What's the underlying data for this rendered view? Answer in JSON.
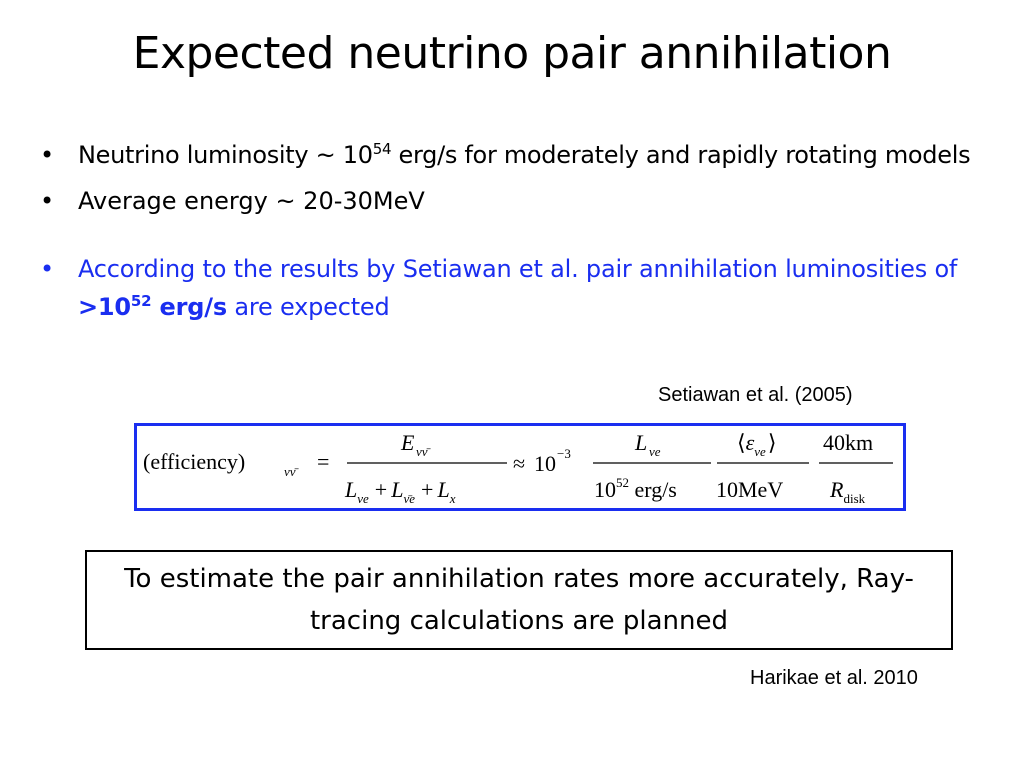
{
  "slide": {
    "title": "Expected neutrino pair annihilation",
    "bullets": [
      {
        "marker": "•",
        "text_before": "Neutrino luminosity ~ 10",
        "sup": "54",
        "text_after": " erg/s for moderately and rapidly rotating models"
      },
      {
        "marker": "•",
        "text": "Average energy ~ 20-30MeV"
      },
      {
        "marker": "•",
        "text_before": "According to the results by Setiawan et al. pair annihilation luminosities of ",
        "emph_before": ">10",
        "emph_sup": "52",
        "emph_after": " erg/s",
        "text_after": " are expected"
      }
    ],
    "citation_1": "Setiawan et al. (2005)",
    "equation": {
      "lhs": "(efficiency)",
      "lhs_sub": "νν̄",
      "equals": "=",
      "f1_num": "E",
      "f1_num_sub": "νν̄",
      "f1_den": [
        "L",
        "νe",
        "+",
        "L",
        "ν̄e",
        "+",
        "L",
        "x"
      ],
      "approx": "≈",
      "base": "10",
      "exp": "−3",
      "f2_num": "L",
      "f2_num_sub": "νe",
      "f2_den_base": "10",
      "f2_den_exp": "52",
      "f2_den_unit": " erg/s",
      "f3_num_open": "⟨",
      "f3_num_var": "ε",
      "f3_num_sub": "νe",
      "f3_num_close": "⟩",
      "f3_den": "10MeV",
      "f4_num": "40km",
      "f4_den": "R",
      "f4_den_sub": "disk"
    },
    "note": "To estimate the pair annihilation rates more accurately, Ray-tracing calculations are planned",
    "citation_2": "Harikae et al. 2010",
    "colors": {
      "accent": "#1a2ef0",
      "text": "#000000",
      "background": "#ffffff"
    }
  }
}
